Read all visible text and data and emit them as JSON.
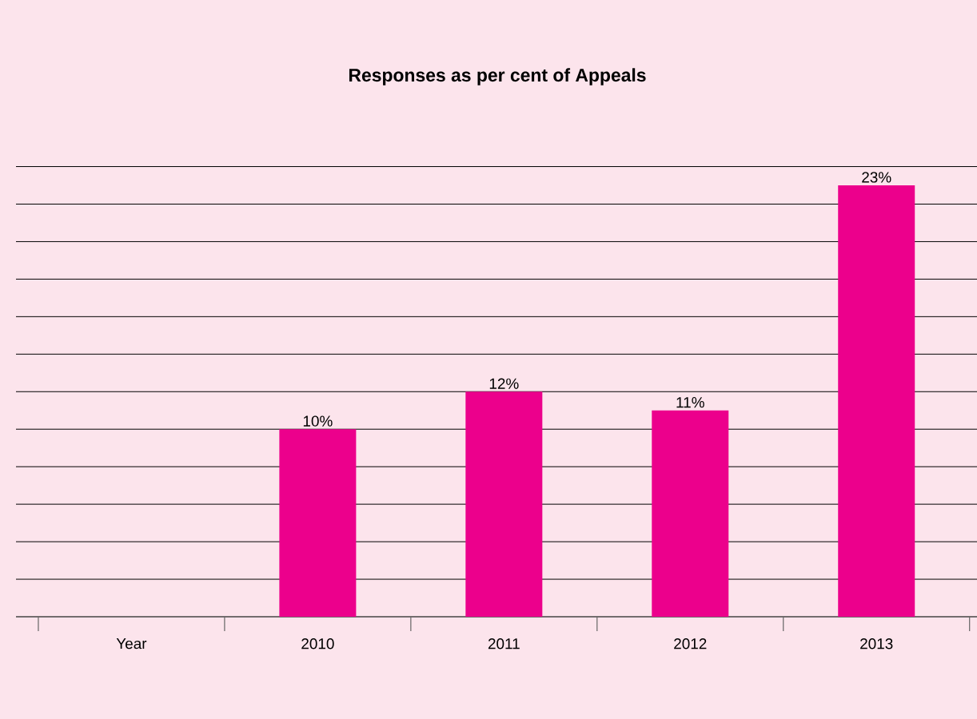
{
  "chart_data": {
    "type": "bar",
    "title": "Responses as per cent of Appeals",
    "categories": [
      "Year",
      "2010",
      "2011",
      "2012",
      "2013"
    ],
    "values": [
      null,
      10,
      12,
      11,
      23
    ],
    "value_labels": [
      null,
      "10%",
      "12%",
      "11%",
      "23%"
    ],
    "color": "#ec008c",
    "grid": "y",
    "tick_labels": "x"
  }
}
